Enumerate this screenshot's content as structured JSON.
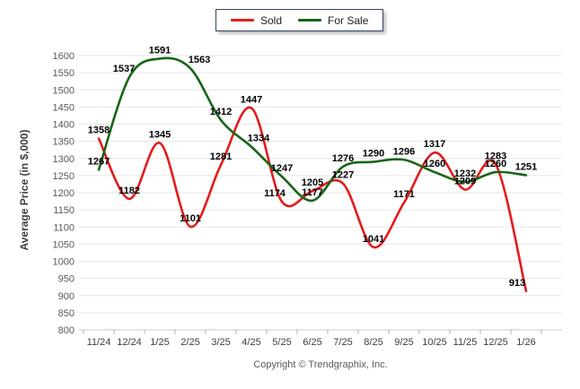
{
  "legend": {
    "items": [
      {
        "label": "Sold",
        "color": "#e31b1c"
      },
      {
        "label": "For Sale",
        "color": "#176617"
      }
    ]
  },
  "y_axis": {
    "title": "Average Price (in $,000)",
    "min": 800,
    "max": 1600,
    "step": 50,
    "tick_labels": [
      "800",
      "850",
      "900",
      "950",
      "1000",
      "1050",
      "1100",
      "1150",
      "1200",
      "1250",
      "1300",
      "1350",
      "1400",
      "1450",
      "1500",
      "1550",
      "1600"
    ]
  },
  "x_axis": {
    "labels": [
      "11/24",
      "12/24",
      "1/25",
      "2/25",
      "3/25",
      "4/25",
      "5/25",
      "6/25",
      "7/25",
      "8/25",
      "9/25",
      "10/25",
      "11/25",
      "12/25",
      "1/26"
    ]
  },
  "footer": {
    "copyright": "Copyright © Trendgraphix, Inc."
  },
  "chart_data": {
    "type": "line",
    "title": "",
    "xlabel": "",
    "ylabel": "Average Price (in $,000)",
    "ylim": [
      800,
      1600
    ],
    "ystep": 50,
    "grid": true,
    "legend_position": "top",
    "curve": "spline",
    "categories": [
      "11/24",
      "12/24",
      "1/25",
      "2/25",
      "3/25",
      "4/25",
      "5/25",
      "6/25",
      "7/25",
      "8/25",
      "9/25",
      "10/25",
      "11/25",
      "12/25",
      "1/26"
    ],
    "series": [
      {
        "name": "Sold",
        "color": "#e31b1c",
        "values": [
          1358,
          1182,
          1345,
          1101,
          1281,
          1447,
          1174,
          1205,
          1227,
          1041,
          1171,
          1317,
          1209,
          1283,
          913
        ]
      },
      {
        "name": "For Sale",
        "color": "#176617",
        "values": [
          1267,
          1537,
          1591,
          1563,
          1412,
          1334,
          1247,
          1177,
          1276,
          1290,
          1296,
          1260,
          1232,
          1260,
          1251
        ]
      }
    ]
  },
  "colors": {
    "grid_line": "#e6e6e6",
    "axis_line": "#c9c9c9",
    "tick_mark": "#b5b5b5",
    "y_tick_label": "#595959",
    "x_tick_label": "#3d3d46",
    "data_label": "#000000"
  }
}
